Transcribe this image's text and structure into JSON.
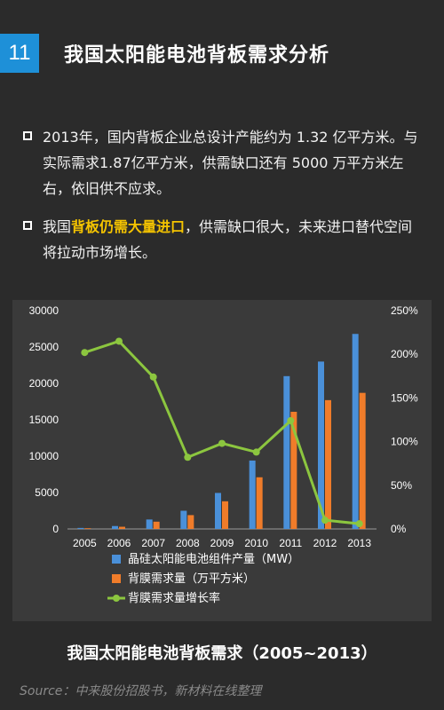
{
  "page": {
    "number": "11",
    "title": "我国太阳能电池背板需求分析"
  },
  "bullets": [
    {
      "text": "2013年，国内背板企业总设计产能约为 1.32 亿平方米。与实际需求1.87亿平方米，供需缺口还有 5000 万平方米左右，依旧供不应求。"
    },
    {
      "prefix": "我国",
      "highlight": "背板仍需大量进口",
      "suffix": "，供需缺口很大，未来进口替代空间将拉动市场增长。"
    }
  ],
  "chart_title": "我国太阳能电池背板需求（2005~2013）",
  "source": "Source：中来股份招股书，新材料在线整理",
  "colors": {
    "bar1": "#4a90d9",
    "bar2": "#f07c2a",
    "line": "#8cc63f",
    "highlight": "#f5c400",
    "badge": "#1e90d8"
  },
  "chart_data": {
    "type": "bar",
    "categories": [
      "2005",
      "2006",
      "2007",
      "2008",
      "2009",
      "2010",
      "2011",
      "2012",
      "2013"
    ],
    "series": [
      {
        "name": "晶硅太阳能电池组件产量（MW）",
        "type": "bar",
        "axis": "left",
        "values": [
          140,
          400,
          1300,
          2500,
          4950,
          9400,
          21000,
          23000,
          26800
        ]
      },
      {
        "name": "背膜需求量（万平方米）",
        "type": "bar",
        "axis": "left",
        "values": [
          100,
          300,
          1000,
          1900,
          3800,
          7100,
          16100,
          17700,
          18700
        ]
      },
      {
        "name": "背膜需求量增长率",
        "type": "line",
        "axis": "right",
        "values": [
          2.02,
          2.15,
          1.74,
          0.82,
          0.98,
          0.88,
          1.24,
          0.1,
          0.06
        ]
      }
    ],
    "y_left": {
      "range": [
        0,
        30000
      ],
      "ticks": [
        "0",
        "5000",
        "10000",
        "15000",
        "20000",
        "25000",
        "30000"
      ]
    },
    "y_right": {
      "range": [
        0,
        2.5
      ],
      "ticks": [
        "0%",
        "50%",
        "100%",
        "150%",
        "200%",
        "250%"
      ]
    },
    "legend": "bottom",
    "grid": false
  }
}
